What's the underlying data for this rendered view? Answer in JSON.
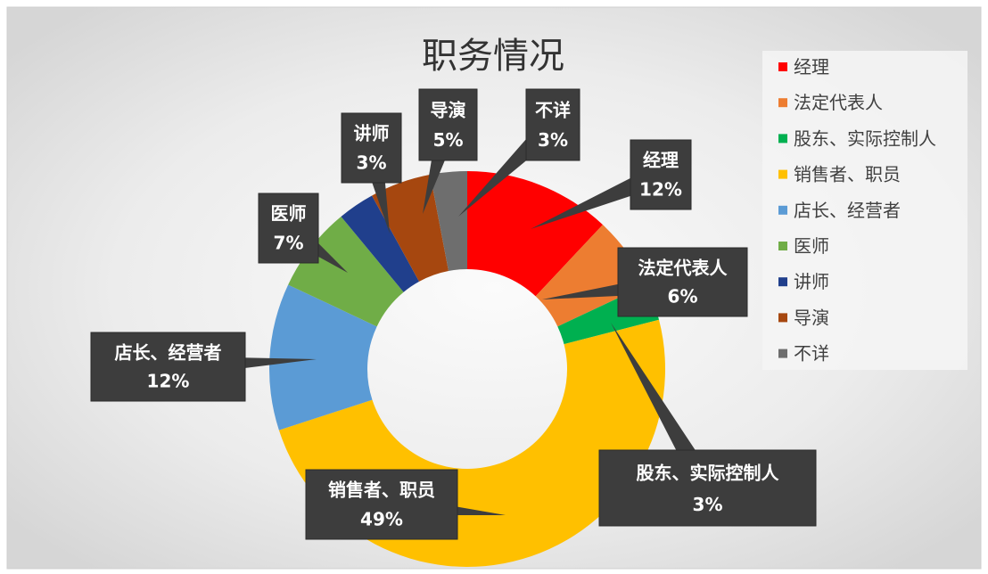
{
  "chart_data": {
    "type": "pie",
    "donut": true,
    "title": "职务情况",
    "categories": [
      "经理",
      "法定代表人",
      "股东、实际控制人",
      "销售者、职员",
      "店长、经营者",
      "医师",
      "讲师",
      "导演",
      "不详"
    ],
    "values": [
      12,
      6,
      3,
      49,
      12,
      7,
      3,
      5,
      3
    ],
    "unit": "%",
    "colors": [
      "#ff0000",
      "#ed7d31",
      "#00b050",
      "#ffc000",
      "#5b9bd5",
      "#70ad47",
      "#203f8c",
      "#a6470f",
      "#6e6e6e"
    ],
    "legend": {
      "position": "right"
    },
    "data_labels": true
  }
}
